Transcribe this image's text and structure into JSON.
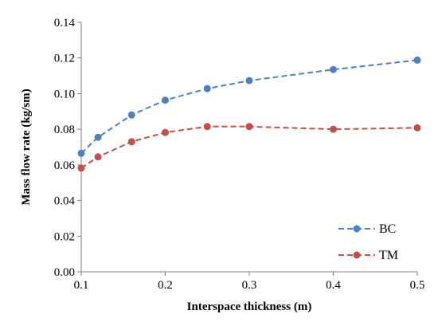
{
  "colors": {
    "BC": "#4f81bd",
    "TM": "#c0504d",
    "axis": "#7f7f7f",
    "background": "#ffffff"
  },
  "chart_data": {
    "type": "line",
    "title": "",
    "xlabel": "Interspace thickness (m)",
    "ylabel": "Mass flow rate  (kg/sm)",
    "xlim": [
      0.1,
      0.5
    ],
    "ylim": [
      0.0,
      0.14
    ],
    "grid": false,
    "legend_position": "bottom-right",
    "x_ticks": [
      "0.1",
      "0.2",
      "0.3",
      "0.4",
      "0.5"
    ],
    "y_ticks": [
      "0.00",
      "0.02",
      "0.04",
      "0.06",
      "0.08",
      "0.10",
      "0.12",
      "0.14"
    ],
    "series": [
      {
        "name": "BC",
        "line_style": "dashed",
        "marker": "circle",
        "x": [
          0.1,
          0.12,
          0.16,
          0.2,
          0.25,
          0.3,
          0.4,
          0.5
        ],
        "y": [
          0.0665,
          0.0755,
          0.088,
          0.0963,
          0.1028,
          0.1073,
          0.1135,
          0.1188
        ]
      },
      {
        "name": "TM",
        "line_style": "dashed",
        "marker": "circle",
        "x": [
          0.1,
          0.12,
          0.16,
          0.2,
          0.25,
          0.3,
          0.4,
          0.5
        ],
        "y": [
          0.0582,
          0.0645,
          0.073,
          0.0782,
          0.0815,
          0.0815,
          0.08,
          0.0808
        ]
      }
    ]
  }
}
